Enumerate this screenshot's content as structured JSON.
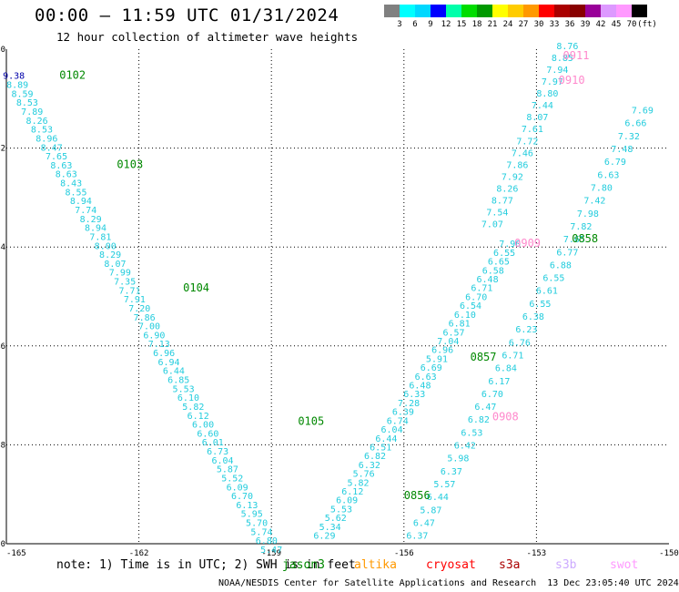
{
  "title": "00:00 – 11:59 UTC 01/31/2024",
  "subtitle": "12 hour collection of altimeter wave heights",
  "colorbar": {
    "unit_label": "(ft)",
    "ticks": [
      "3",
      "6",
      "9",
      "12",
      "15",
      "18",
      "21",
      "24",
      "27",
      "30",
      "33",
      "36",
      "39",
      "42",
      "45",
      "70"
    ],
    "colors": [
      "#808080",
      "#00ffff",
      "#00d8ff",
      "#0000ff",
      "#00ffaa",
      "#00dd00",
      "#009900",
      "#ffff00",
      "#ffcc00",
      "#ff9900",
      "#ff0000",
      "#aa0000",
      "#880000",
      "#990099",
      "#dd99ff",
      "#ff99ff",
      "#000000"
    ]
  },
  "map": {
    "lon_range": [
      -165,
      -150
    ],
    "lat_range": [
      -50,
      -40
    ],
    "lon_ticks": [
      "-165",
      "-162",
      "-159",
      "-156",
      "-153",
      "-150"
    ],
    "lat_ticks": [
      "-40",
      "-42",
      "-44",
      "-46",
      "-48",
      "-50"
    ],
    "grid": "dotted"
  },
  "track_color": "#22ccdd",
  "time_color": "#008800",
  "pink_color": "#ff88cc",
  "time_labels": [
    {
      "text": "0102",
      "lon": -163.8,
      "lat": -40.6,
      "color": "green"
    },
    {
      "text": "0103",
      "lon": -162.5,
      "lat": -42.4,
      "color": "green"
    },
    {
      "text": "0104",
      "lon": -161.0,
      "lat": -44.9,
      "color": "green"
    },
    {
      "text": "0105",
      "lon": -158.4,
      "lat": -47.6,
      "color": "green"
    },
    {
      "text": "0856",
      "lon": -156.0,
      "lat": -49.1,
      "color": "green"
    },
    {
      "text": "0857",
      "lon": -154.5,
      "lat": -46.3,
      "color": "green"
    },
    {
      "text": "0858",
      "lon": -152.2,
      "lat": -43.9,
      "color": "green"
    },
    {
      "text": "0908",
      "lon": -154.0,
      "lat": -47.5,
      "color": "pink"
    },
    {
      "text": "0909",
      "lon": -153.5,
      "lat": -44.0,
      "color": "pink"
    },
    {
      "text": "0910",
      "lon": -152.5,
      "lat": -40.7,
      "color": "pink"
    },
    {
      "text": "0911",
      "lon": -152.4,
      "lat": -40.2,
      "color": "pink"
    }
  ],
  "tracks": [
    {
      "name": "pass-0102-0105",
      "start": [
        -164.75,
        -40.6
      ],
      "end": [
        -159.0,
        -50.0
      ],
      "values": [
        "8.89",
        "8.59",
        "8.53",
        "7.89",
        "8.26",
        "8.53",
        "8.96",
        "8.47",
        "7.65",
        "8.63",
        "8.63",
        "8.43",
        "8.55",
        "8.94",
        "7.74",
        "8.29",
        "8.94",
        "7.81",
        "8.00",
        "8.29",
        "8.07",
        "7.99",
        "7.35",
        "7.71",
        "7.91",
        "7.20",
        "7.86",
        "7.00",
        "6.90",
        "7.13",
        "6.96",
        "6.94",
        "6.44",
        "6.85",
        "5.53",
        "6.10",
        "5.82",
        "6.12",
        "6.00",
        "6.60",
        "6.01",
        "6.73",
        "6.04",
        "5.87",
        "5.52",
        "6.09",
        "6.70",
        "6.13",
        "5.95",
        "5.70",
        "5.74",
        "6.80",
        "5.47"
      ],
      "first": "9.38"
    },
    {
      "name": "pass-0856",
      "start": [
        -153.6,
        -44.0
      ],
      "end": [
        -157.8,
        -49.9
      ],
      "values": [
        "7.90",
        "6.55",
        "6.65",
        "6.58",
        "6.48",
        "6.71",
        "6.70",
        "6.54",
        "6.10",
        "6.81",
        "6.57",
        "7.04",
        "6.96",
        "5.91",
        "6.69",
        "6.63",
        "6.48",
        "6.33",
        "7.28",
        "6.39",
        "6.74",
        "6.04",
        "6.44",
        "6.51",
        "6.82",
        "6.32",
        "5.76",
        "5.82",
        "6.12",
        "6.09",
        "5.53",
        "5.62",
        "5.34",
        "6.29"
      ]
    },
    {
      "name": "pass-0857-0858",
      "start": [
        -150.6,
        -41.3
      ],
      "end": [
        -155.7,
        -49.9
      ],
      "values": [
        "7.69",
        "6.66",
        "7.32",
        "7.48",
        "6.79",
        "6.63",
        "7.80",
        "7.42",
        "7.98",
        "7.82",
        "7.65",
        "6.77",
        "6.88",
        "6.55",
        "6.61",
        "6.55",
        "6.38",
        "6.23",
        "6.76",
        "6.71",
        "6.84",
        "6.17",
        "6.70",
        "6.47",
        "6.82",
        "6.53",
        "6.42",
        "5.98",
        "6.37",
        "5.57",
        "6.44",
        "5.87",
        "6.47",
        "6.37"
      ]
    },
    {
      "name": "pass-0908-0911",
      "start": [
        -152.3,
        -40.0
      ],
      "end": [
        -154.0,
        -43.6
      ],
      "values": [
        "8.76",
        "8.85",
        "7.94",
        "7.97",
        "8.80",
        "7.44",
        "8.07",
        "7.61",
        "7.72",
        "7.46",
        "7.86",
        "7.92",
        "8.26",
        "8.77",
        "7.54",
        "7.07"
      ]
    }
  ],
  "note": "note: 1) Time is in UTC; 2) SWH is in feet",
  "legend": [
    {
      "label": "jason3",
      "color": "#008800"
    },
    {
      "label": "altika",
      "color": "#ff9900"
    },
    {
      "label": "cryosat",
      "color": "#ff0000"
    },
    {
      "label": "s3a",
      "color": "#aa0000"
    },
    {
      "label": "s3b",
      "color": "#ccaaff"
    },
    {
      "label": "swot",
      "color": "#ff99ff"
    }
  ],
  "footer_center": "NOAA/NESDIS Center for Satellite Applications and Research",
  "footer_time": "13 Dec 23:05:40 UTC 2024"
}
